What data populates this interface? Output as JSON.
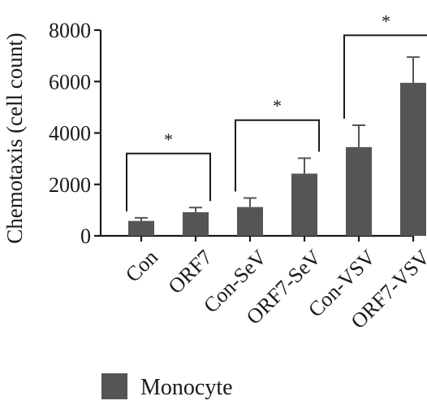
{
  "chart_data": {
    "type": "bar",
    "title": "",
    "xlabel": "",
    "ylabel": "Chemotaxis (cell count)",
    "ylim": [
      0,
      8000
    ],
    "yticks": [
      0,
      2000,
      4000,
      6000,
      8000
    ],
    "categories": [
      "Con",
      "ORF7",
      "Con-SeV",
      "ORF7-SeV",
      "Con-VSV",
      "ORF7-VSV"
    ],
    "series": [
      {
        "name": "Monocyte",
        "color": "#555555",
        "values": [
          580,
          920,
          1120,
          2420,
          3450,
          5950
        ],
        "errors": [
          120,
          180,
          350,
          600,
          850,
          1000
        ]
      }
    ],
    "significance": [
      {
        "from": "Con",
        "to": "ORF7",
        "label": "*",
        "bracket_y": 3200
      },
      {
        "from": "Con-SeV",
        "to": "ORF7-SeV",
        "label": "*",
        "bracket_y": 4500
      },
      {
        "from": "Con-VSV",
        "to": "ORF7-VSV",
        "label": "*",
        "bracket_y": 7800
      }
    ],
    "legend": {
      "position": "bottom-left",
      "entries": [
        "Monocyte"
      ]
    },
    "grid": false
  }
}
